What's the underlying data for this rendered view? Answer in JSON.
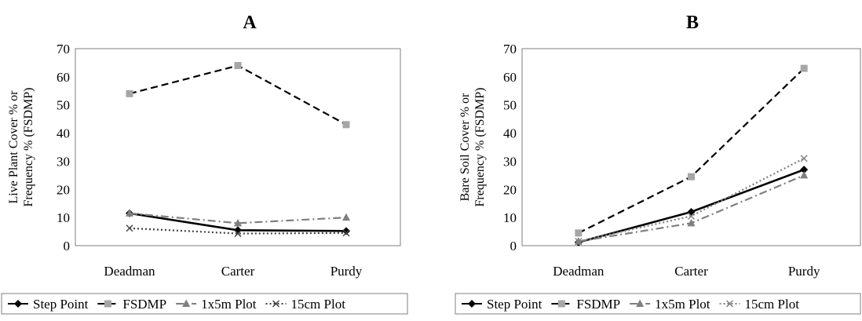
{
  "chart_data": [
    {
      "type": "line",
      "title": "A",
      "xlabel": "",
      "ylabel": "Live Plant Cover % or Frequency % (FSDMP)",
      "ylabel_lines": [
        "Live Plant Cover % or",
        "Frequency % (FSDMP)"
      ],
      "categories": [
        "Deadman",
        "Carter",
        "Purdy"
      ],
      "ylim": [
        0,
        70
      ],
      "yticks": [
        "0",
        "10",
        "20",
        "30",
        "40",
        "50",
        "60",
        "70"
      ],
      "grid": false,
      "legend_position": "bottom",
      "series": [
        {
          "name": "Step Point",
          "values": [
            11.5,
            5.5,
            5.2
          ],
          "color": "#000000",
          "dash": "solid",
          "marker": "diamond"
        },
        {
          "name": "FSDMP",
          "values": [
            54,
            64,
            43
          ],
          "color": "#000000",
          "dash": "dashed",
          "marker": "square",
          "marker_color": "#a6a6a6"
        },
        {
          "name": "1x5m Plot",
          "values": [
            11.5,
            8,
            10
          ],
          "color": "#7f7f7f",
          "dash": "dashdot",
          "marker": "triangle"
        },
        {
          "name": "15cm Plot",
          "values": [
            6.2,
            4.3,
            4.5
          ],
          "color": "#404040",
          "dash": "dotted",
          "marker": "x"
        }
      ]
    },
    {
      "type": "line",
      "title": "B",
      "xlabel": "",
      "ylabel": "Bare Soil Cover % or Frequency % (FSDMP)",
      "ylabel_lines": [
        "Bare Soil Cover % or",
        "Frequency % (FSDMP)"
      ],
      "categories": [
        "Deadman",
        "Carter",
        "Purdy"
      ],
      "ylim": [
        0,
        70
      ],
      "yticks": [
        "0",
        "10",
        "20",
        "30",
        "40",
        "50",
        "60",
        "70"
      ],
      "grid": false,
      "legend_position": "bottom",
      "series": [
        {
          "name": "Step Point",
          "values": [
            1.2,
            12,
            27
          ],
          "color": "#000000",
          "dash": "solid",
          "marker": "diamond"
        },
        {
          "name": "FSDMP",
          "values": [
            4.5,
            24.5,
            63
          ],
          "color": "#000000",
          "dash": "dashed",
          "marker": "square",
          "marker_color": "#a6a6a6"
        },
        {
          "name": "1x5m Plot",
          "values": [
            1.5,
            8,
            25
          ],
          "color": "#7f7f7f",
          "dash": "dashdot",
          "marker": "triangle"
        },
        {
          "name": "15cm Plot",
          "values": [
            1.5,
            10.5,
            31
          ],
          "color": "#7f7f7f",
          "dash": "dotted",
          "marker": "x"
        }
      ]
    }
  ]
}
